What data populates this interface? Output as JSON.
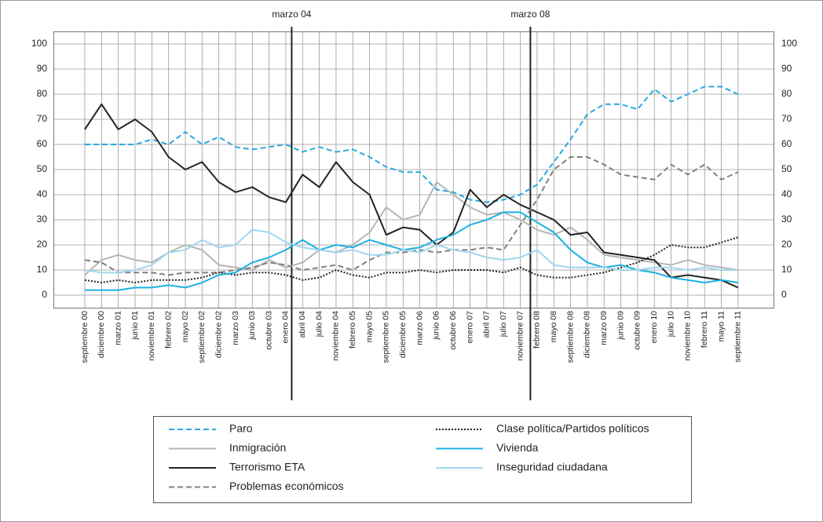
{
  "chart_data": {
    "type": "line",
    "categories": [
      "septiembre 00",
      "diciembre 00",
      "marzo 01",
      "junio 01",
      "noviembre 01",
      "febrero 02",
      "mayo 02",
      "septiembre 02",
      "diciembre 02",
      "marzo 03",
      "junio 03",
      "octubre 03",
      "enero 04",
      "abril 04",
      "julio 04",
      "noviembre 04",
      "febrero 05",
      "mayo 05",
      "septiembre 05",
      "diciembre 05",
      "marzo 06",
      "junio 06",
      "octubre 06",
      "enero 07",
      "abril 07",
      "julio 07",
      "noviembre 07",
      "febrero 08",
      "mayo 08",
      "septiembre 08",
      "diciembre 08",
      "marzo 09",
      "junio 09",
      "octubre 09",
      "enero 10",
      "julio 10",
      "noviembre 10",
      "febrero 11",
      "mayo 11",
      "septiembre 11"
    ],
    "annotations": [
      "marzo 04",
      "marzo 08"
    ],
    "ylim": [
      0,
      100
    ],
    "yticks": [
      0,
      10,
      20,
      30,
      40,
      50,
      60,
      70,
      80,
      90,
      100
    ],
    "grid": true,
    "series": [
      {
        "name": "Paro",
        "color": "#2aa9e0",
        "dash": "dashed",
        "values": [
          60,
          60,
          60,
          60,
          62,
          60,
          65,
          60,
          63,
          59,
          58,
          59,
          60,
          57,
          59,
          57,
          58,
          55,
          51,
          49,
          49,
          42,
          41,
          38,
          37,
          38,
          40,
          44,
          53,
          62,
          72,
          76,
          76,
          74,
          82,
          77,
          80,
          83,
          83,
          80
        ]
      },
      {
        "name": "Inmigración",
        "color": "#b5b5b5",
        "dash": "solid",
        "values": [
          8,
          14,
          16,
          14,
          13,
          17,
          20,
          18,
          12,
          11,
          10,
          14,
          11,
          13,
          18,
          17,
          20,
          25,
          35,
          30,
          32,
          45,
          40,
          35,
          32,
          33,
          30,
          26,
          24,
          27,
          22,
          16,
          15,
          14,
          13,
          12,
          14,
          12,
          11,
          10
        ]
      },
      {
        "name": "Terrorismo ETA",
        "color": "#222222",
        "dash": "solid",
        "values": [
          66,
          76,
          66,
          70,
          65,
          55,
          50,
          53,
          45,
          41,
          43,
          39,
          37,
          48,
          43,
          53,
          45,
          40,
          24,
          27,
          26,
          20,
          25,
          42,
          35,
          40,
          36,
          33,
          30,
          24,
          25,
          17,
          16,
          15,
          14,
          7,
          8,
          7,
          6,
          3
        ]
      },
      {
        "name": "Problemas económicos",
        "color": "#808080",
        "dash": "dashed",
        "values": [
          14,
          13,
          9,
          9,
          9,
          8,
          9,
          9,
          9,
          10,
          11,
          13,
          12,
          10,
          11,
          12,
          10,
          14,
          17,
          17,
          18,
          17,
          18,
          18,
          19,
          18,
          28,
          38,
          50,
          55,
          55,
          52,
          48,
          47,
          46,
          52,
          48,
          52,
          46,
          49
        ]
      },
      {
        "name": "Clase política/Partidos políticos",
        "color": "#222222",
        "dash": "dotted",
        "values": [
          6,
          5,
          6,
          5,
          6,
          6,
          6,
          7,
          9,
          8,
          9,
          9,
          8,
          6,
          7,
          10,
          8,
          7,
          9,
          9,
          10,
          9,
          10,
          10,
          10,
          9,
          11,
          8,
          7,
          7,
          8,
          9,
          11,
          13,
          16,
          20,
          19,
          19,
          21,
          23
        ]
      },
      {
        "name": "Vivienda",
        "color": "#1cb0e0",
        "dash": "solid",
        "values": [
          2,
          2,
          2,
          3,
          3,
          4,
          3,
          5,
          8,
          9,
          13,
          15,
          18,
          22,
          18,
          20,
          19,
          22,
          20,
          18,
          19,
          22,
          24,
          28,
          30,
          33,
          33,
          29,
          25,
          18,
          13,
          11,
          12,
          10,
          9,
          7,
          6,
          5,
          6,
          5
        ]
      },
      {
        "name": "Inseguridad ciudadana",
        "color": "#9fd6ee",
        "dash": "solid",
        "values": [
          10,
          9,
          9,
          10,
          12,
          17,
          18,
          22,
          19,
          20,
          26,
          25,
          21,
          19,
          18,
          17,
          18,
          16,
          16,
          18,
          17,
          20,
          18,
          17,
          15,
          14,
          15,
          18,
          12,
          11,
          11,
          11,
          10,
          10,
          11,
          11,
          10,
          11,
          10,
          10
        ]
      }
    ]
  }
}
